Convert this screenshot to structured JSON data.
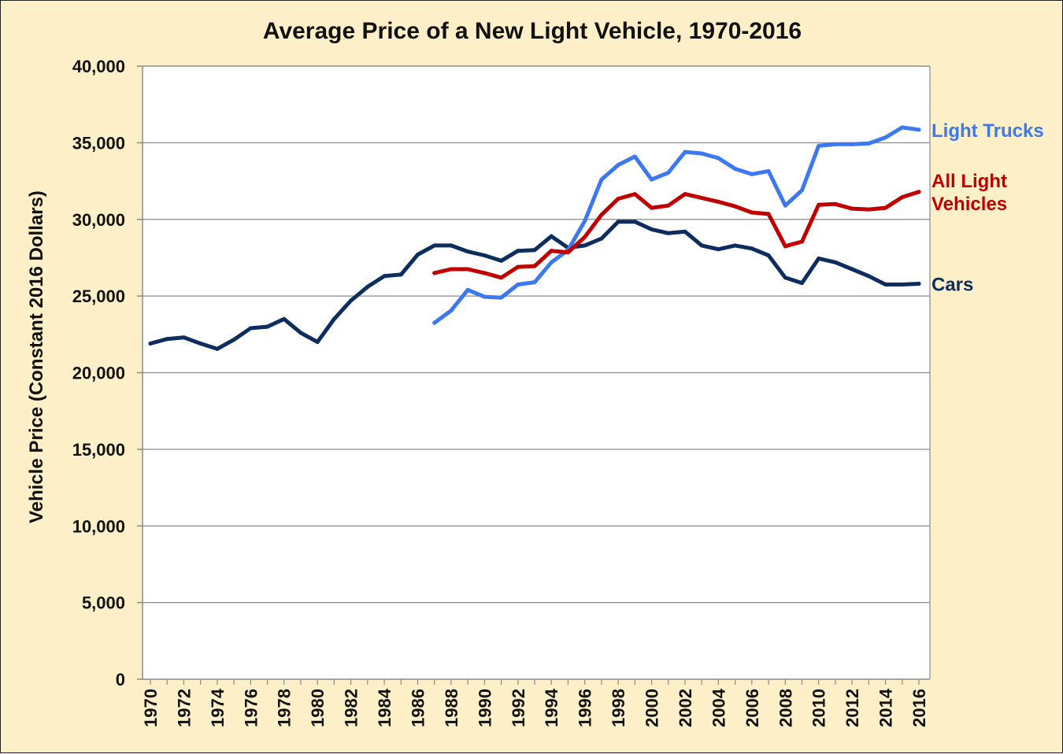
{
  "chart_data": {
    "type": "line",
    "title": "Average Price of a New Light Vehicle, 1970-2016",
    "xlabel": "",
    "ylabel": "Vehicle Price (Constant 2016 Dollars)",
    "ylim": [
      0,
      40000
    ],
    "xlim": [
      1970,
      2016
    ],
    "yticks": [
      0,
      5000,
      10000,
      15000,
      20000,
      25000,
      30000,
      35000,
      40000
    ],
    "ytick_labels": [
      "0",
      "5,000",
      "10,000",
      "15,000",
      "20,000",
      "25,000",
      "30,000",
      "35,000",
      "40,000"
    ],
    "xticks": [
      1970,
      1972,
      1974,
      1976,
      1978,
      1980,
      1982,
      1984,
      1986,
      1988,
      1990,
      1992,
      1994,
      1996,
      1998,
      2000,
      2002,
      2004,
      2006,
      2008,
      2010,
      2012,
      2014,
      2016
    ],
    "grid": true,
    "legend": "inline-right",
    "series": [
      {
        "name": "Cars",
        "label_lines": [
          "Cars"
        ],
        "color": "#0c2d5e",
        "x": [
          1970,
          1971,
          1972,
          1973,
          1974,
          1975,
          1976,
          1977,
          1978,
          1979,
          1980,
          1981,
          1982,
          1983,
          1984,
          1985,
          1986,
          1987,
          1988,
          1989,
          1990,
          1991,
          1992,
          1993,
          1994,
          1995,
          1996,
          1997,
          1998,
          1999,
          2000,
          2001,
          2002,
          2003,
          2004,
          2005,
          2006,
          2007,
          2008,
          2009,
          2010,
          2011,
          2012,
          2013,
          2014,
          2015,
          2016
        ],
        "values": [
          21900,
          22200,
          22300,
          21900,
          21550,
          22150,
          22900,
          23000,
          23500,
          22600,
          22000,
          23500,
          24700,
          25600,
          26300,
          26400,
          27700,
          28300,
          28300,
          27900,
          27650,
          27300,
          27950,
          28000,
          28900,
          28150,
          28300,
          28750,
          29850,
          29850,
          29350,
          29100,
          29200,
          28300,
          28050,
          28300,
          28100,
          27650,
          26200,
          25850,
          27450,
          27200,
          26750,
          26300,
          25750,
          25750,
          25800
        ]
      },
      {
        "name": "Light Trucks",
        "label_lines": [
          "Light Trucks"
        ],
        "color": "#3c78f0",
        "x": [
          1987,
          1988,
          1989,
          1990,
          1991,
          1992,
          1993,
          1994,
          1995,
          1996,
          1997,
          1998,
          1999,
          2000,
          2001,
          2002,
          2003,
          2004,
          2005,
          2006,
          2007,
          2008,
          2009,
          2010,
          2011,
          2012,
          2013,
          2014,
          2015,
          2016
        ],
        "values": [
          23250,
          24050,
          25400,
          24950,
          24900,
          25750,
          25900,
          27200,
          28000,
          29900,
          32600,
          33550,
          34100,
          32600,
          33050,
          34400,
          34300,
          34000,
          33300,
          32950,
          33150,
          30900,
          31900,
          34800,
          34900,
          34900,
          34950,
          35350,
          36000,
          35850
        ]
      },
      {
        "name": "All Light Vehicles",
        "label_lines": [
          "All Light",
          "Vehicles"
        ],
        "color": "#c00000",
        "x": [
          1987,
          1988,
          1989,
          1990,
          1991,
          1992,
          1993,
          1994,
          1995,
          1996,
          1997,
          1998,
          1999,
          2000,
          2001,
          2002,
          2003,
          2004,
          2005,
          2006,
          2007,
          2008,
          2009,
          2010,
          2011,
          2012,
          2013,
          2014,
          2015,
          2016
        ],
        "values": [
          26500,
          26750,
          26750,
          26500,
          26200,
          26900,
          26950,
          27950,
          27850,
          28850,
          30300,
          31350,
          31650,
          30750,
          30900,
          31650,
          31400,
          31150,
          30850,
          30450,
          30350,
          28250,
          28550,
          30950,
          31000,
          30700,
          30650,
          30750,
          31450,
          31800
        ]
      }
    ]
  }
}
